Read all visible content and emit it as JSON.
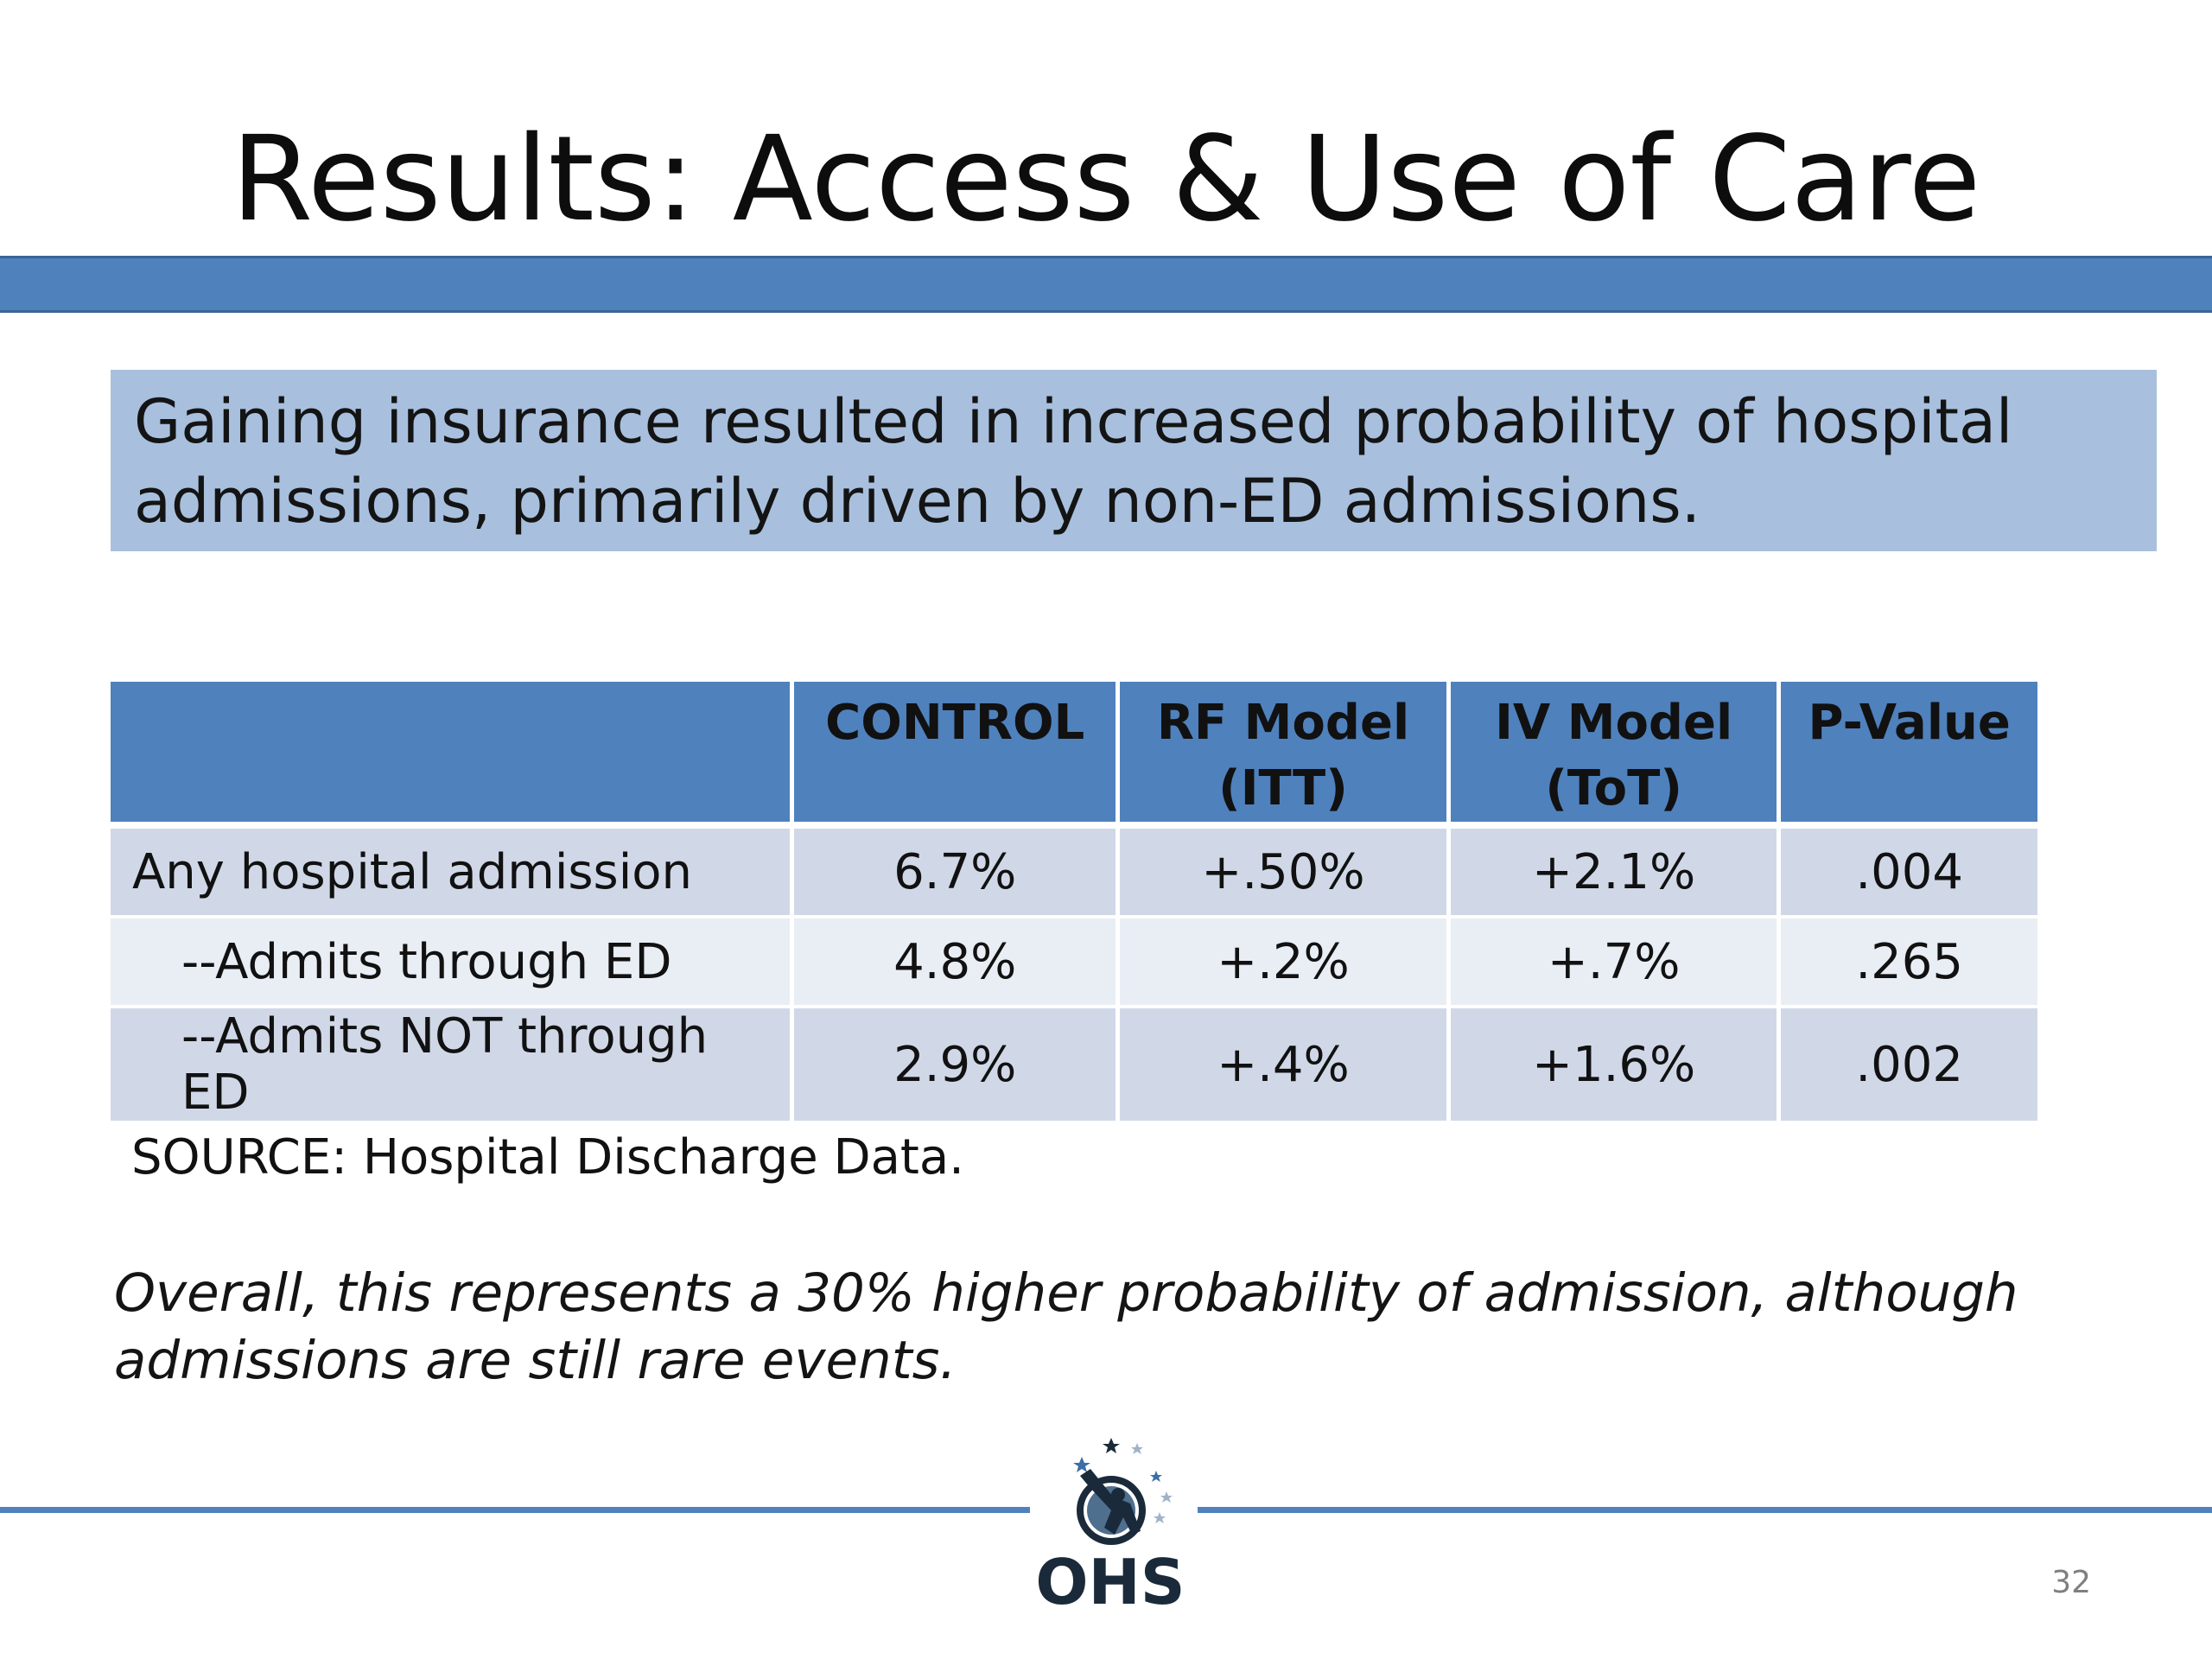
{
  "slide": {
    "title": "Results: Access & Use of Care",
    "callout_lines": [
      "Gaining insurance resulted in increased probability of hospital",
      "admissions, primarily driven by non-ED admissions."
    ],
    "table": {
      "headers": [
        {
          "line1": "",
          "line2": ""
        },
        {
          "line1": "CONTROL",
          "line2": ""
        },
        {
          "line1": "RF Model",
          "line2": "(ITT)"
        },
        {
          "line1": "IV Model",
          "line2": "(ToT)"
        },
        {
          "line1": "P-Value",
          "line2": ""
        }
      ],
      "rows": [
        {
          "label": "Any hospital admission",
          "control": "6.7%",
          "rf": "+.50%",
          "iv": "+2.1%",
          "p": ".004"
        },
        {
          "label": "--Admits through ED",
          "control": "4.8%",
          "rf": "+.2%",
          "iv": "+.7%",
          "p": ".265"
        },
        {
          "label": "--Admits NOT through ED",
          "control": "2.9%",
          "rf": "+.4%",
          "iv": "+1.6%",
          "p": ".002"
        }
      ]
    },
    "source": "SOURCE: Hospital Discharge Data.",
    "note_lines": [
      "Overall, this represents a 30% higher probability of admission, although",
      "admissions are still rare events."
    ],
    "logo": {
      "text": "OHS",
      "icon": "ohs-logo-icon"
    },
    "page_number": "32",
    "colors": {
      "accent": "#4f81bd",
      "callout_bg": "#a8c0de",
      "row_odd": "#d0d8e8",
      "row_even": "#e9edf4"
    }
  }
}
